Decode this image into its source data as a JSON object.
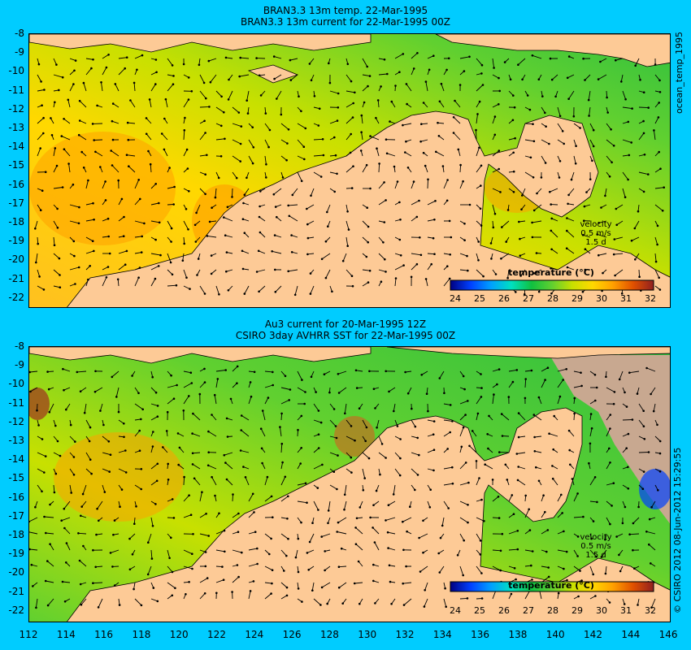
{
  "top": {
    "title_line1": "BRAN3.3 13m temp. 22-Mar-1995",
    "title_line2": "BRAN3.3 13m current for 22-Mar-1995 00Z",
    "side_label": "ocean_temp_1995",
    "colorbar_title": "temperature (°C)",
    "velocity_label": "velocity",
    "velocity_speed": "0.5 m/s",
    "velocity_time": "1.5 d"
  },
  "bottom": {
    "title_line1": "Au3 current for 20-Mar-1995 12Z",
    "title_line2": "CSIRO 3day AVHRR SST for 22-Mar-1995 00Z",
    "side_label": "© CSIRO 2012  08-Jun-2012 15:29:55",
    "colorbar_title": "temperature (°C)",
    "velocity_label": "velocity",
    "velocity_speed": "0.5 m/s",
    "velocity_time": "1.5 d"
  },
  "y_ticks": [
    "-8",
    "-9",
    "-10",
    "-11",
    "-12",
    "-13",
    "-14",
    "-15",
    "-16",
    "-17",
    "-18",
    "-19",
    "-20",
    "-21",
    "-22"
  ],
  "x_ticks": [
    "112",
    "114",
    "116",
    "118",
    "120",
    "122",
    "124",
    "126",
    "128",
    "130",
    "132",
    "134",
    "136",
    "138",
    "140",
    "142",
    "144",
    "146"
  ],
  "colorbar_ticks": [
    "24",
    "25",
    "26",
    "27",
    "28",
    "29",
    "30",
    "31",
    "32"
  ],
  "colors": {
    "background": "#00ccff",
    "land": "#fdca96",
    "missing": "#c8a890",
    "colormap": [
      "#000080",
      "#0040ff",
      "#00c8ff",
      "#00e0a0",
      "#10c040",
      "#60d030",
      "#c8e000",
      "#ffd800",
      "#ffa000",
      "#e05000",
      "#902020"
    ]
  }
}
